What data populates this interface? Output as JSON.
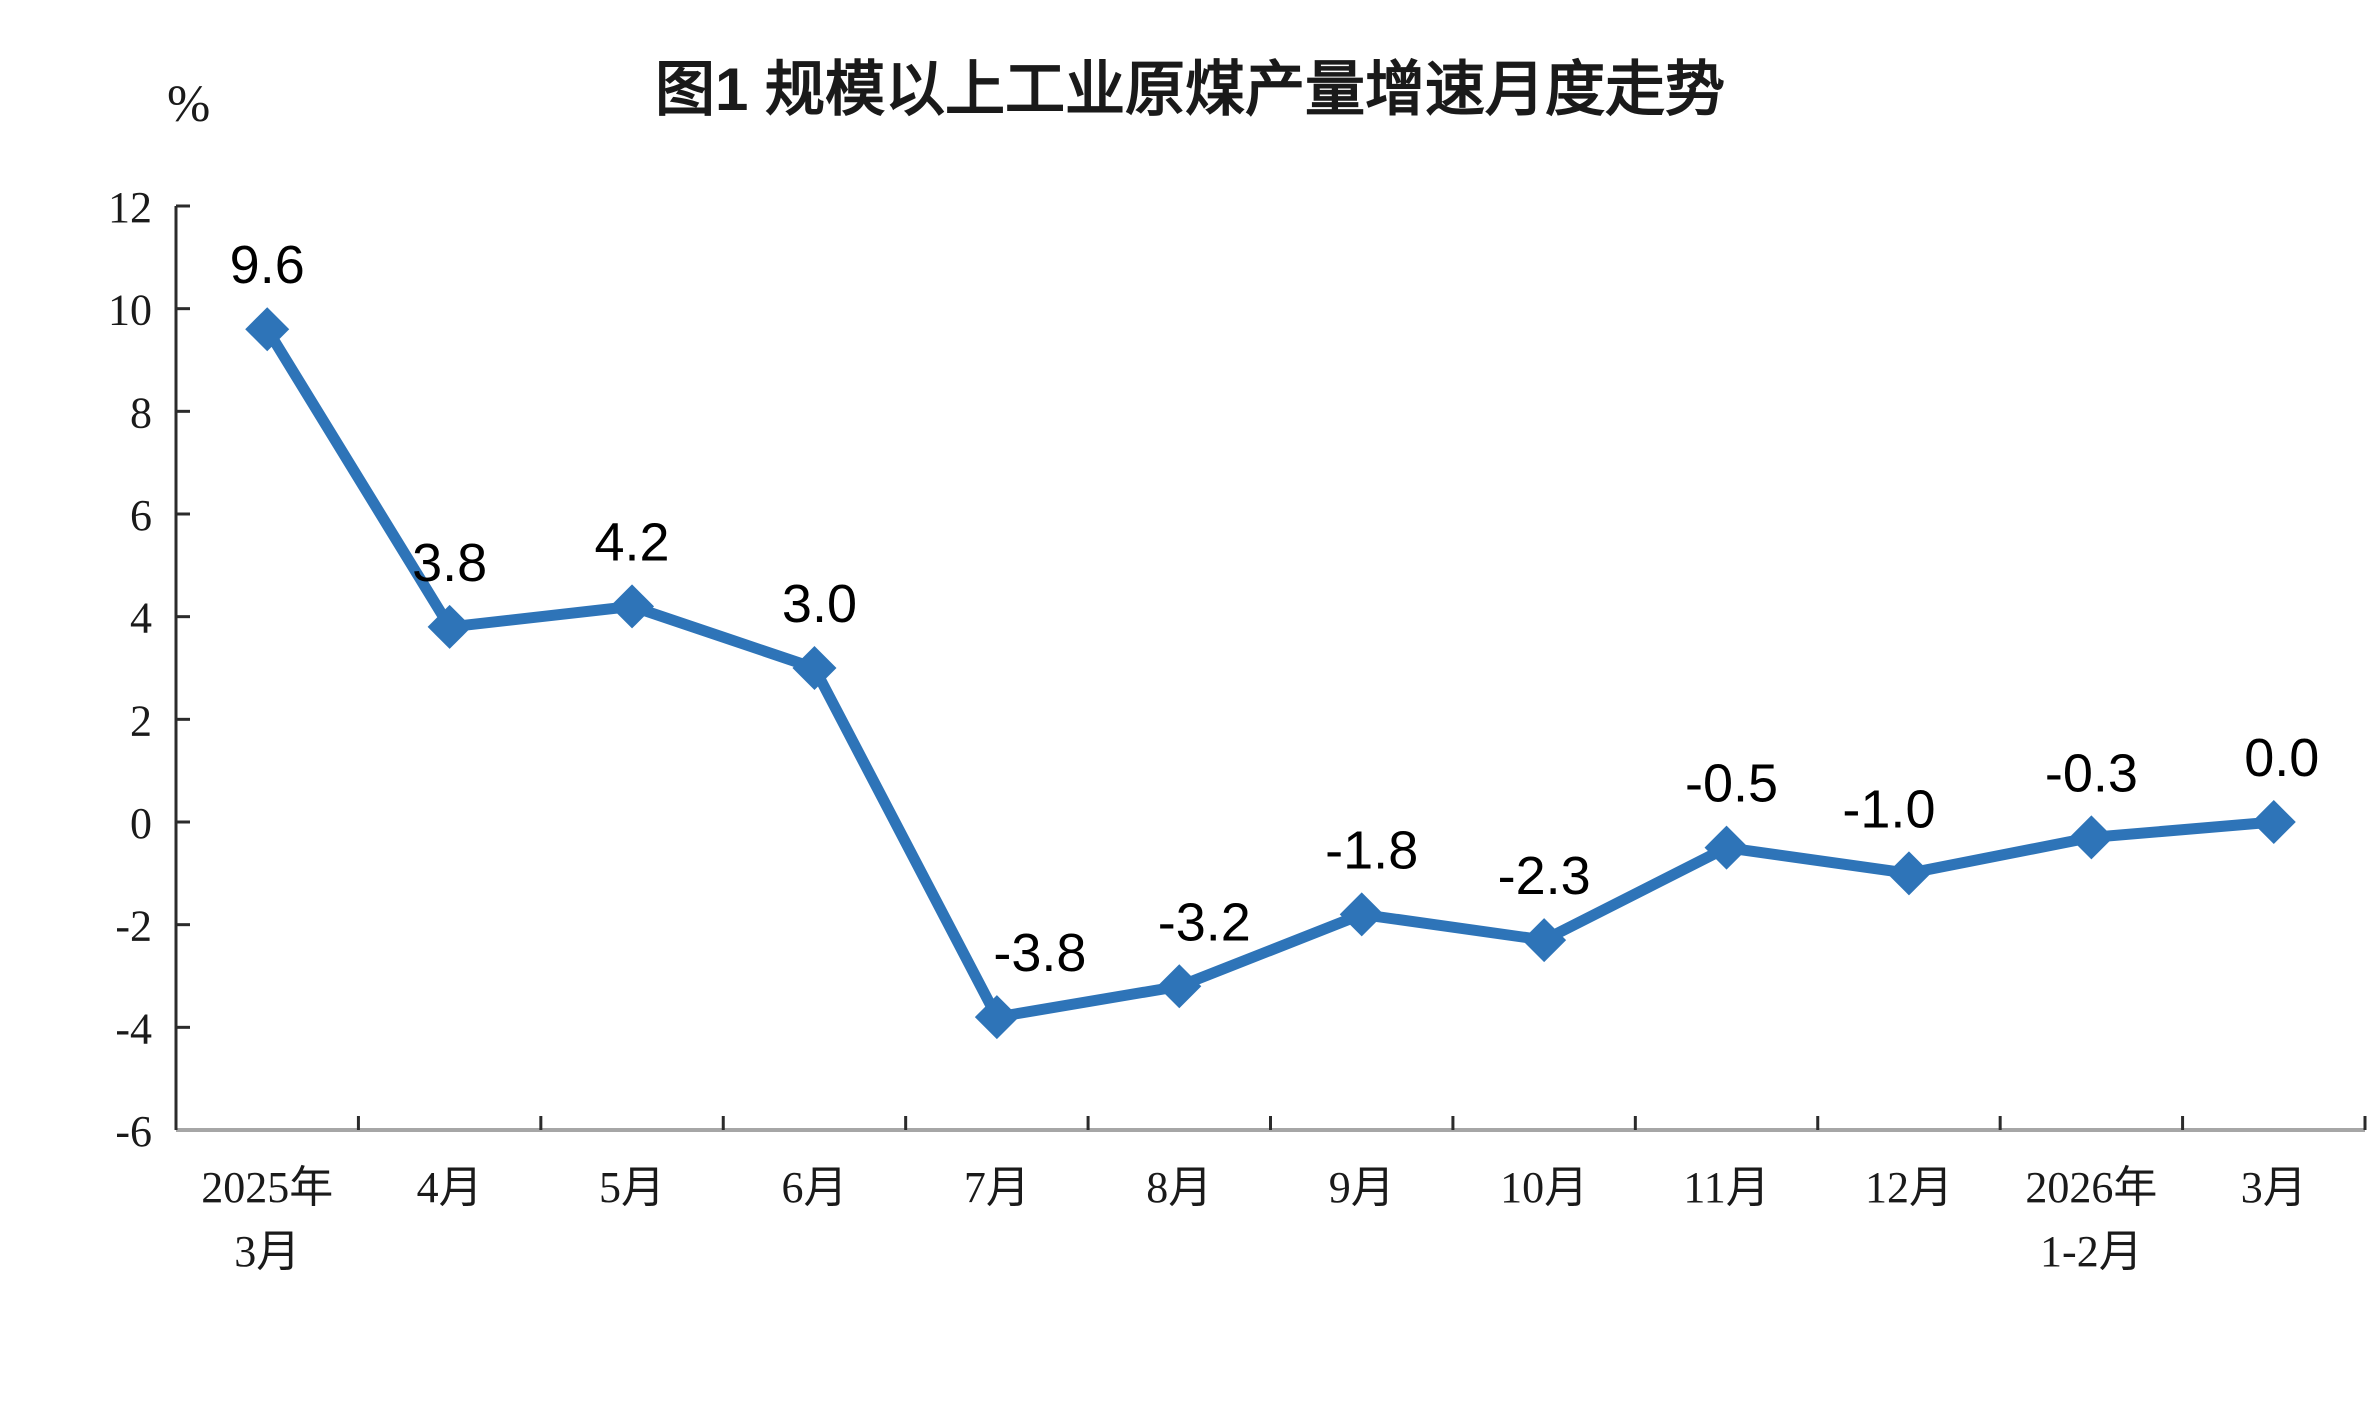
{
  "page": {
    "background": "#ffffff"
  },
  "chart_data": {
    "type": "line",
    "title": "图1 规模以上工业原煤产量增速月度走势",
    "unit_label": "%",
    "categories": [
      [
        "2025年",
        "3月"
      ],
      [
        "4月"
      ],
      [
        "5月"
      ],
      [
        "6月"
      ],
      [
        "7月"
      ],
      [
        "8月"
      ],
      [
        "9月"
      ],
      [
        "10月"
      ],
      [
        "11月"
      ],
      [
        "12月"
      ],
      [
        "2026年",
        "1-2月"
      ],
      [
        "3月"
      ]
    ],
    "values": [
      9.6,
      3.8,
      4.2,
      3.0,
      -3.8,
      -3.2,
      -1.8,
      -2.3,
      -0.5,
      -1.0,
      -0.3,
      0.0
    ],
    "data_labels": [
      "9.6",
      "3.8",
      "4.2",
      "3.0",
      "-3.8",
      "-3.2",
      "-1.8",
      "-2.3",
      "-0.5",
      "-1.0",
      "-0.3",
      "0.0"
    ],
    "y_ticks": [
      "12",
      "10",
      "8",
      "6",
      "4",
      "2",
      "0",
      "-2",
      "-4",
      "-6"
    ],
    "ylim": [
      -6,
      12
    ],
    "ytick_step": 2,
    "grid": false,
    "legend": "none",
    "marker": "diamond",
    "colors": {
      "line": "#2E74B8",
      "marker": "#2E74B8",
      "data_label": "#000000",
      "axis_text": "#1a1a1a",
      "x_axis_line": "#A6A6A6",
      "y_axis_line": "#2b2b2b",
      "tick": "#2b2b2b"
    }
  }
}
